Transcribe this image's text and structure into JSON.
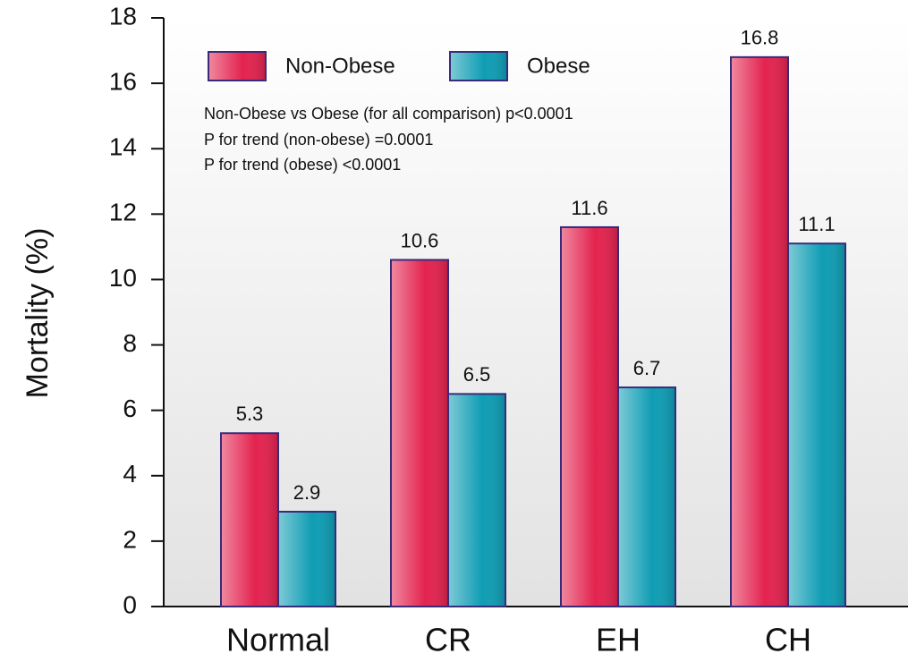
{
  "chart_data": {
    "type": "bar",
    "y_label": "Mortality (%)",
    "categories": [
      "Normal",
      "CR",
      "EH",
      "CH"
    ],
    "series": [
      {
        "name": "Non-Obese",
        "color": "#e3234f",
        "values": [
          5.3,
          10.6,
          11.6,
          16.8
        ]
      },
      {
        "name": "Obese",
        "color": "#0f9db4",
        "values": [
          2.9,
          6.5,
          6.7,
          11.1
        ]
      }
    ],
    "annotations": [
      "Non-Obese vs Obese (for all comparison) p<0.0001",
      "P for trend (non-obese) =0.0001",
      "P for trend (obese) <0.0001"
    ],
    "ylim": [
      0,
      18
    ],
    "yticks": [
      0,
      2,
      4,
      6,
      8,
      10,
      12,
      14,
      16,
      18
    ]
  }
}
